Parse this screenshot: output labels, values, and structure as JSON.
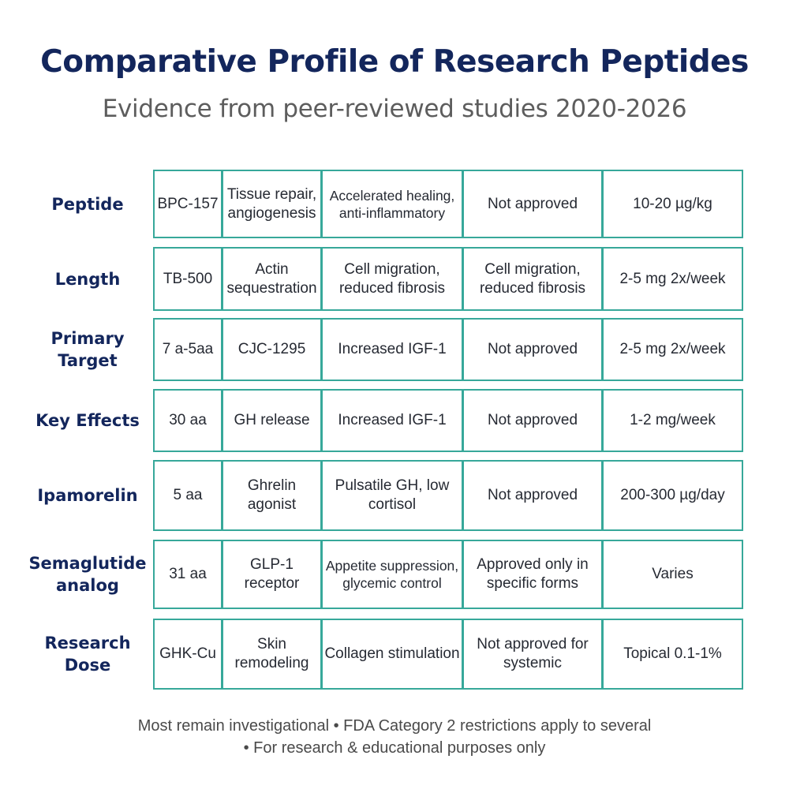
{
  "header": {
    "title": "Comparative Profile of Research Peptides",
    "subtitle": "Evidence from peer-reviewed studies 2020-2026"
  },
  "table": {
    "rows": [
      {
        "label": [
          "Peptide"
        ],
        "cells": [
          "BPC-157",
          "Tissue repair, angiogenesis",
          "Accelerated healing, anti-inflammatory",
          "Not approved",
          "10-20 µg/kg"
        ]
      },
      {
        "label": [
          "Length"
        ],
        "cells": [
          "TB-500",
          "Actin sequestration",
          "Cell migration, reduced fibrosis",
          "Cell migration, reduced fibrosis",
          "2-5 mg 2x/week"
        ]
      },
      {
        "label": [
          "Primary",
          "Target"
        ],
        "cells": [
          "7 a-5aa",
          "CJC-1295",
          "Increased IGF-1",
          "Not approved",
          "2-5 mg 2x/week"
        ]
      },
      {
        "label": [
          "Key Effects"
        ],
        "cells": [
          "30 aa",
          "GH release",
          "Increased IGF-1",
          "Not approved",
          "1-2 mg/week"
        ]
      },
      {
        "label": [
          "Ipamorelin"
        ],
        "cells": [
          "5 aa",
          "Ghrelin agonist",
          "Pulsatile GH, low cortisol",
          "Not approved",
          "200-300 µg/day"
        ]
      },
      {
        "label": [
          "Semaglutide",
          "analog"
        ],
        "cells": [
          "31 aa",
          "GLP-1 receptor",
          "Appetite suppression, glycemic control",
          "Approved only in specific forms",
          "Varies"
        ]
      },
      {
        "label": [
          "Research",
          "Dose"
        ],
        "cells": [
          "GHK-Cu",
          "Skin remodeling",
          "Collagen stimulation",
          "Not approved for systemic",
          "Topical 0.1-1%"
        ]
      }
    ]
  },
  "footer": {
    "line1": "Most remain investigational • FDA Category 2 restrictions apply to several",
    "line2": "• For research & educational purposes only"
  }
}
